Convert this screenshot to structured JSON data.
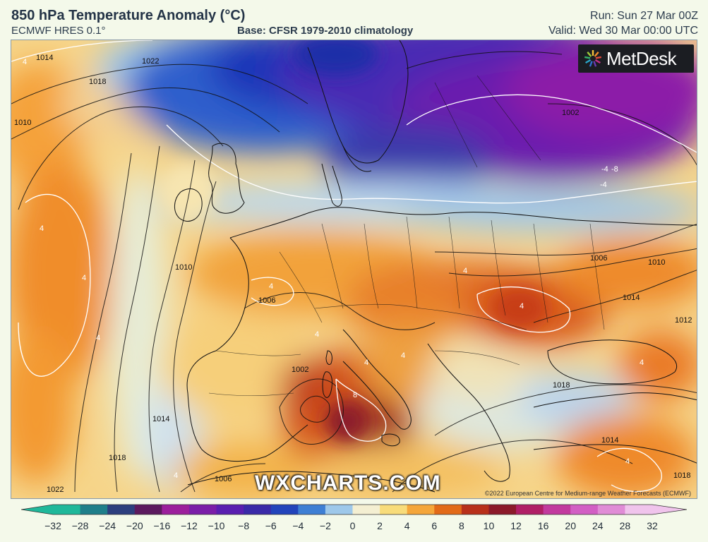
{
  "header": {
    "title": "850 hPa Temperature Anomaly (°C)",
    "model": "ECMWF HRES 0.1°",
    "base": "Base: CFSR 1979-2010 climatology",
    "run": "Run: Sun 27 Mar 00Z",
    "valid": "Valid: Wed 30 Mar 00:00 UTC"
  },
  "map": {
    "logo": "MetDesk",
    "watermark": "WXCHARTS.COM",
    "copyright": "©2022 European Centre for Medium-range Weather Forecasts (ECMWF)",
    "isobar_labels": [
      "1014",
      "1018",
      "1010",
      "1022",
      "1002",
      "1006",
      "1010",
      "1014",
      "1006",
      "1002",
      "1014",
      "1018",
      "1018",
      "1014",
      "1022",
      "1018",
      "1006",
      "1010",
      "1012"
    ],
    "anomaly_labels": [
      "-4",
      "-8",
      "-4",
      "4",
      "4",
      "4",
      "4",
      "8",
      "4",
      "4",
      "4",
      "4",
      "4",
      "4",
      "4",
      "4",
      "4"
    ]
  },
  "legend": {
    "ticks": [
      "−32",
      "−28",
      "−24",
      "−20",
      "−16",
      "−12",
      "−10",
      "−8",
      "−6",
      "−4",
      "−2",
      "0",
      "2",
      "4",
      "6",
      "8",
      "10",
      "12",
      "16",
      "20",
      "24",
      "28",
      "32"
    ],
    "colors": [
      "#1fb89a",
      "#1f7f8a",
      "#2d3f7e",
      "#5c1a5e",
      "#9c1f9c",
      "#7b1ea8",
      "#5a1fb0",
      "#3a2aa8",
      "#2244bb",
      "#3e7fd4",
      "#9ec8ea",
      "#f4efd2",
      "#f8dc7a",
      "#f5a63a",
      "#e26a18",
      "#b8301a",
      "#8c1a2a",
      "#b01f66",
      "#c23a9e",
      "#d25fc4",
      "#e08cd6",
      "#f0c4ec"
    ]
  }
}
